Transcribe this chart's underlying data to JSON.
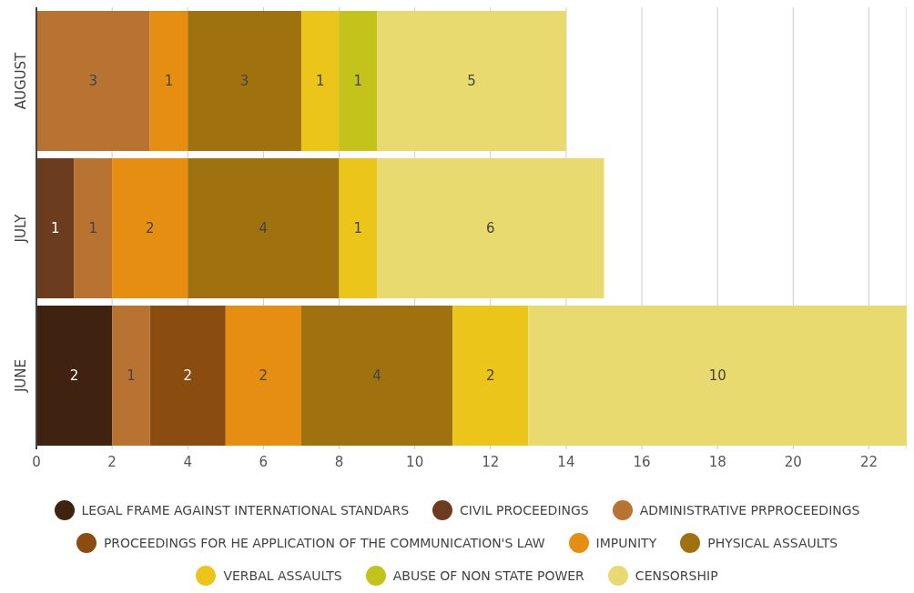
{
  "chart_data": {
    "type": "bar",
    "orientation": "horizontal",
    "stacked": true,
    "categories": [
      "AUGUST",
      "JULY",
      "JUNE"
    ],
    "series": [
      {
        "name": "LEGAL FRAME AGAINST INTERNATIONAL STANDARS",
        "color": "#3f2210",
        "values": [
          null,
          null,
          2
        ]
      },
      {
        "name": "CIVIL PROCEEDINGS",
        "color": "#6b3d1e",
        "values": [
          null,
          1,
          null
        ]
      },
      {
        "name": "ADMINISTRATIVE PRPROCEEDINGS",
        "color": "#b87333",
        "values": [
          3,
          1,
          1
        ]
      },
      {
        "name": "PROCEEDINGS FOR HE APPLICATION OF THE COMMUNICATION'S LAW",
        "color": "#8b4c0f",
        "values": [
          null,
          null,
          2
        ]
      },
      {
        "name": "IMPUNITY",
        "color": "#e58e12",
        "values": [
          1,
          2,
          2
        ]
      },
      {
        "name": "PHYSICAL ASSAULTS",
        "color": "#a0720f",
        "values": [
          3,
          4,
          4
        ]
      },
      {
        "name": "VERBAL ASSAULTS",
        "color": "#ecc51a",
        "values": [
          1,
          1,
          2
        ]
      },
      {
        "name": "ABUSE OF NON STATE POWER",
        "color": "#c3c31c",
        "values": [
          1,
          null,
          null
        ]
      },
      {
        "name": "CENSORSHIP",
        "color": "#e8da6e",
        "values": [
          5,
          6,
          10
        ]
      }
    ],
    "xlim": [
      0,
      23
    ],
    "xticks": [
      0,
      2,
      4,
      6,
      8,
      10,
      12,
      14,
      16,
      18,
      20,
      22
    ],
    "grid": "x",
    "legend": "bottom",
    "data_labels": true
  }
}
